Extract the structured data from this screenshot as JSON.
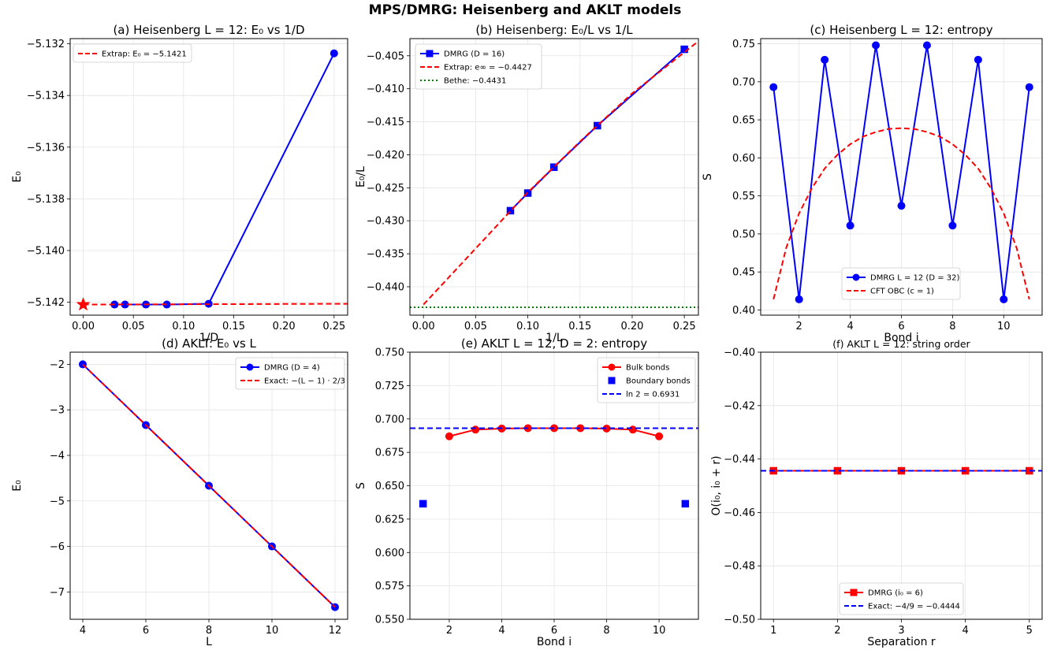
{
  "suptitle": "MPS/DMRG: Heisenberg and AKLT models",
  "chart_data": [
    {
      "id": "a",
      "type": "line",
      "title": "(a) Heisenberg L = 12: E₀ vs 1/D",
      "xlabel": "1/D",
      "ylabel": "E₀",
      "xlim": [
        -0.013,
        0.2635
      ],
      "ylim": [
        -5.1425,
        -5.1318
      ],
      "xticks": [
        0.0,
        0.05,
        0.1,
        0.15,
        0.2,
        0.25
      ],
      "xtick_labels": [
        "0.00",
        "0.05",
        "0.10",
        "0.15",
        "0.20",
        "0.25"
      ],
      "yticks": [
        -5.142,
        -5.14,
        -5.138,
        -5.136,
        -5.134,
        -5.132
      ],
      "ytick_labels": [
        "−5.142",
        "−5.140",
        "−5.138",
        "−5.136",
        "−5.134",
        "−5.132"
      ],
      "grid": true,
      "legend_position": "upper-left",
      "series": [
        {
          "color": "#0000ff",
          "style": "solid",
          "marker": "circle",
          "x": [
            0.03125,
            0.041667,
            0.0625,
            0.083333,
            0.125,
            0.25
          ],
          "y": [
            -5.14209,
            -5.14209,
            -5.14209,
            -5.14209,
            -5.14206,
            -5.13237
          ]
        },
        {
          "name": "Extrap: E₀ = −5.1421",
          "color": "#ff0000",
          "style": "dashed",
          "x": [
            0.0,
            0.2635
          ],
          "y": [
            -5.14209,
            -5.14206
          ]
        },
        {
          "color": "#ff0000",
          "style": "none",
          "marker": "star",
          "x": [
            0.0
          ],
          "y": [
            -5.14209
          ]
        }
      ]
    },
    {
      "id": "b",
      "type": "line",
      "title": "(b) Heisenberg: E₀/L vs 1/L",
      "xlabel": "1/L",
      "ylabel": "E₀/L",
      "xlim": [
        -0.013,
        0.2635
      ],
      "ylim": [
        -0.4443,
        -0.4024
      ],
      "xticks": [
        0.0,
        0.05,
        0.1,
        0.15,
        0.2,
        0.25
      ],
      "xtick_labels": [
        "0.00",
        "0.05",
        "0.10",
        "0.15",
        "0.20",
        "0.25"
      ],
      "yticks": [
        -0.44,
        -0.435,
        -0.43,
        -0.425,
        -0.42,
        -0.415,
        -0.41,
        -0.405
      ],
      "ytick_labels": [
        "−0.440",
        "−0.435",
        "−0.430",
        "−0.425",
        "−0.420",
        "−0.415",
        "−0.410",
        "−0.405"
      ],
      "grid": true,
      "legend_position": "upper-left",
      "series": [
        {
          "name": "DMRG (D = 16)",
          "color": "#0000ff",
          "style": "solid",
          "marker": "square",
          "x": [
            0.083333,
            0.1,
            0.125,
            0.166667,
            0.25
          ],
          "y": [
            -0.42847,
            -0.4258,
            -0.42188,
            -0.41559,
            -0.40402
          ]
        },
        {
          "name": "Extrap: e∞ = −0.4427",
          "color": "#ff0000",
          "style": "dashed",
          "x": [
            0.0,
            0.05,
            0.1,
            0.15,
            0.2,
            0.265
          ],
          "y": [
            -0.4427,
            -0.4342,
            -0.4257,
            -0.418,
            -0.4107,
            -0.4026
          ]
        },
        {
          "name": "Bethe: −0.4431",
          "color": "#008000",
          "style": "dotted",
          "x": [
            -0.013,
            0.2635
          ],
          "y": [
            -0.4431,
            -0.4431
          ]
        }
      ]
    },
    {
      "id": "c",
      "type": "line",
      "title": "(c) Heisenberg L = 12: entropy",
      "xlabel": "Bond i",
      "ylabel": "S",
      "xlim": [
        0.5,
        11.5
      ],
      "ylim": [
        0.3932,
        0.7568
      ],
      "xticks": [
        2,
        4,
        6,
        8,
        10
      ],
      "xtick_labels": [
        "2",
        "4",
        "6",
        "8",
        "10"
      ],
      "yticks": [
        0.4,
        0.45,
        0.5,
        0.55,
        0.6,
        0.65,
        0.7,
        0.75
      ],
      "ytick_labels": [
        "0.40",
        "0.45",
        "0.50",
        "0.55",
        "0.60",
        "0.65",
        "0.70",
        "0.75"
      ],
      "grid": true,
      "legend_position": "lower-center",
      "series": [
        {
          "name": "DMRG L = 12 (D = 32)",
          "color": "#0000ff",
          "style": "solid",
          "marker": "circle",
          "x": [
            1,
            2,
            3,
            4,
            5,
            6,
            7,
            8,
            9,
            10,
            11
          ],
          "y": [
            0.693,
            0.414,
            0.729,
            0.511,
            0.748,
            0.537,
            0.748,
            0.511,
            0.729,
            0.414,
            0.693
          ]
        },
        {
          "name": "CFT OBC (c = 1)",
          "color": "#ff0000",
          "style": "dashed",
          "x": [
            1,
            1.5,
            2,
            2.5,
            3,
            3.5,
            4,
            4.5,
            5,
            5.5,
            6,
            6.5,
            7,
            7.5,
            8,
            8.5,
            9,
            9.5,
            10,
            10.5,
            11
          ],
          "y": [
            0.414,
            0.482,
            0.527,
            0.56,
            0.586,
            0.604,
            0.618,
            0.628,
            0.634,
            0.638,
            0.639,
            0.638,
            0.634,
            0.628,
            0.618,
            0.604,
            0.586,
            0.56,
            0.527,
            0.482,
            0.414
          ]
        }
      ]
    },
    {
      "id": "d",
      "type": "line",
      "title": "(d) AKLT: E₀ vs L",
      "xlabel": "L",
      "ylabel": "E₀",
      "xlim": [
        3.6,
        12.4
      ],
      "ylim": [
        -7.6,
        -1.733
      ],
      "xticks": [
        4,
        6,
        8,
        10,
        12
      ],
      "xtick_labels": [
        "4",
        "6",
        "8",
        "10",
        "12"
      ],
      "yticks": [
        -7,
        -6,
        -5,
        -4,
        -3,
        -2
      ],
      "ytick_labels": [
        "−7",
        "−6",
        "−5",
        "−4",
        "−3",
        "−2"
      ],
      "grid": true,
      "legend_position": "upper-right",
      "series": [
        {
          "name": "DMRG (D = 4)",
          "color": "#0000ff",
          "style": "solid",
          "marker": "circle",
          "x": [
            4,
            6,
            8,
            10,
            12
          ],
          "y": [
            -2.0,
            -3.3333,
            -4.6667,
            -6.0,
            -7.3333
          ]
        },
        {
          "name": "Exact: −(L − 1) · 2/3",
          "color": "#ff0000",
          "style": "dashed",
          "x": [
            4,
            12
          ],
          "y": [
            -2.0,
            -7.3333
          ]
        }
      ]
    },
    {
      "id": "e",
      "type": "line",
      "title": "(e) AKLT L = 12, D = 2: entropy",
      "xlabel": "Bond i",
      "ylabel": "S",
      "xlim": [
        0.5,
        11.5
      ],
      "ylim": [
        0.55,
        0.75
      ],
      "xticks": [
        2,
        4,
        6,
        8,
        10
      ],
      "xtick_labels": [
        "2",
        "4",
        "6",
        "8",
        "10"
      ],
      "yticks": [
        0.55,
        0.575,
        0.6,
        0.625,
        0.65,
        0.675,
        0.7,
        0.725,
        0.75
      ],
      "ytick_labels": [
        "0.550",
        "0.575",
        "0.600",
        "0.625",
        "0.650",
        "0.675",
        "0.700",
        "0.725",
        "0.750"
      ],
      "grid": true,
      "legend_position": "upper-right",
      "series": [
        {
          "name": "Bulk bonds",
          "color": "#ff0000",
          "style": "solid",
          "marker": "circle",
          "x": [
            2,
            3,
            4,
            5,
            6,
            7,
            8,
            9,
            10
          ],
          "y": [
            0.687,
            0.692,
            0.6928,
            0.6931,
            0.6931,
            0.6931,
            0.6928,
            0.692,
            0.687
          ]
        },
        {
          "name": "Boundary bonds",
          "color": "#0000ff",
          "style": "none",
          "marker": "square",
          "x": [
            1,
            11
          ],
          "y": [
            0.6365,
            0.6365
          ]
        },
        {
          "name": "ln 2 = 0.6931",
          "color": "#0000ff",
          "style": "dashed",
          "x": [
            0.5,
            11.5
          ],
          "y": [
            0.6931,
            0.6931
          ]
        }
      ]
    },
    {
      "id": "f",
      "type": "line",
      "title": "(f) AKLT L = 12: string order",
      "xlabel": "Separation r",
      "ylabel": "O(i₀, i₀ + r)",
      "xlim": [
        0.8,
        5.2
      ],
      "ylim": [
        -0.5,
        -0.4
      ],
      "xticks": [
        1,
        2,
        3,
        4,
        5
      ],
      "xtick_labels": [
        "1",
        "2",
        "3",
        "4",
        "5"
      ],
      "yticks": [
        -0.5,
        -0.48,
        -0.46,
        -0.44,
        -0.42,
        -0.4
      ],
      "ytick_labels": [
        "−0.50",
        "−0.48",
        "−0.46",
        "−0.44",
        "−0.42",
        "−0.40"
      ],
      "grid": true,
      "legend_position": "lower-center",
      "series": [
        {
          "name": "DMRG (i₀ = 6)",
          "color": "#ff0000",
          "style": "solid",
          "marker": "square",
          "x": [
            1,
            2,
            3,
            4,
            5
          ],
          "y": [
            -0.4444,
            -0.4444,
            -0.4444,
            -0.4444,
            -0.4444
          ]
        },
        {
          "name": "Exact: −4/9 = −0.4444",
          "color": "#0000ff",
          "style": "dashed",
          "x": [
            0.8,
            5.2
          ],
          "y": [
            -0.4444,
            -0.4444
          ]
        }
      ]
    }
  ]
}
